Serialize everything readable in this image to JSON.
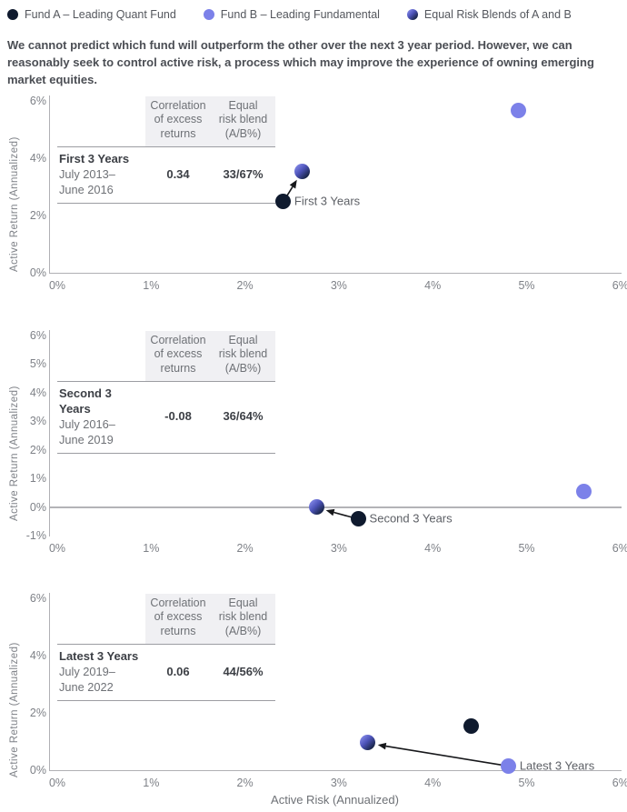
{
  "legend": {
    "items": [
      {
        "fund": "fund_a",
        "label": "Fund A – Leading Quant Fund"
      },
      {
        "fund": "fund_b",
        "label": "Fund B – Leading Fundamental"
      },
      {
        "fund": "blend",
        "label": "Equal Risk Blends of A and B"
      }
    ]
  },
  "intro": "We cannot predict which fund will outperform the other over the next 3 year period. However, we can\nreasonably seek to control active risk, a process which may improve the experience of owning emerging\nmarket equities.",
  "palette": {
    "fund_a": "#0f1a2e",
    "fund_b": "#7c81e9",
    "blend": [
      "#858ae9",
      "#4d53b8",
      "#13203a"
    ],
    "axis": "#b0b0b4",
    "arrow": "#17181b",
    "table_header_bg": "#f0f0f3"
  },
  "chart_data": [
    {
      "type": "scatter",
      "period": "First 3 Years",
      "ylabel": "Active Return (Annualized)",
      "xlabel": "",
      "xlim": [
        0,
        6
      ],
      "ylim": [
        0,
        6.2
      ],
      "x_ticks": [
        {
          "value": 0,
          "label": "0%"
        },
        {
          "value": 1,
          "label": "1%"
        },
        {
          "value": 2,
          "label": "2%"
        },
        {
          "value": 3,
          "label": "3%"
        },
        {
          "value": 4,
          "label": "4%"
        },
        {
          "value": 5,
          "label": "5%"
        },
        {
          "value": 6,
          "label": "6%"
        }
      ],
      "y_ticks": [
        {
          "value": 6,
          "label": "6%"
        },
        {
          "value": 4,
          "label": "4%"
        },
        {
          "value": 2,
          "label": "2%"
        },
        {
          "value": 0,
          "label": "0%"
        }
      ],
      "zero_line": false,
      "points": [
        {
          "fund": "fund_a",
          "name": "Fund A – Leading Quant Fund",
          "x": 2.4,
          "y": 2.5
        },
        {
          "fund": "fund_b",
          "name": "Fund B – Leading Fundamental",
          "x": 4.9,
          "y": 5.65
        },
        {
          "fund": "blend",
          "name": "Equal Risk Blends of A and B",
          "x": 2.6,
          "y": 3.55
        }
      ],
      "arrow": {
        "from": 0,
        "to": 2
      },
      "annotation": {
        "text": "First 3 Years",
        "point": 0
      },
      "table": {
        "col1_header": "Correlation\nof excess\nreturns",
        "col2_header": "Equal\nrisk blend\n(A/B%)",
        "period_label": "First 3 Years",
        "period_range": "July 2013–\nJune 2016",
        "correlation": "0.34",
        "blend": "33/67%"
      }
    },
    {
      "type": "scatter",
      "period": "Second 3 Years",
      "ylabel": "Active Return (Annualized)",
      "xlabel": "",
      "xlim": [
        0,
        6
      ],
      "ylim": [
        -1,
        6.2
      ],
      "x_ticks": [
        {
          "value": 0,
          "label": "0%"
        },
        {
          "value": 1,
          "label": "1%"
        },
        {
          "value": 2,
          "label": "2%"
        },
        {
          "value": 3,
          "label": "3%"
        },
        {
          "value": 4,
          "label": "4%"
        },
        {
          "value": 5,
          "label": "5%"
        },
        {
          "value": 6,
          "label": "6%"
        }
      ],
      "y_ticks": [
        {
          "value": 6,
          "label": "6%"
        },
        {
          "value": 5,
          "label": "5%"
        },
        {
          "value": 4,
          "label": "4%"
        },
        {
          "value": 3,
          "label": "3%"
        },
        {
          "value": 2,
          "label": "2%"
        },
        {
          "value": 1,
          "label": "1%"
        },
        {
          "value": 0,
          "label": "0%"
        },
        {
          "value": -1,
          "label": "-1%"
        }
      ],
      "zero_line": true,
      "points": [
        {
          "fund": "fund_a",
          "name": "Fund A – Leading Quant Fund",
          "x": 3.2,
          "y": -0.4
        },
        {
          "fund": "fund_b",
          "name": "Fund B – Leading Fundamental",
          "x": 5.6,
          "y": 0.55
        },
        {
          "fund": "blend",
          "name": "Equal Risk Blends of A and B",
          "x": 2.75,
          "y": 0.0
        }
      ],
      "arrow": {
        "from": 0,
        "to": 2
      },
      "annotation": {
        "text": "Second 3 Years",
        "point": 0
      },
      "table": {
        "col1_header": "Correlation\nof excess\nreturns",
        "col2_header": "Equal\nrisk blend\n(A/B%)",
        "period_label": "Second 3 Years",
        "period_range": "July 2016–\nJune 2019",
        "correlation": "-0.08",
        "blend": "36/64%"
      }
    },
    {
      "type": "scatter",
      "period": "Latest 3 Years",
      "ylabel": "Active Return (Annualized)",
      "xlabel": "Active Risk (Annualized)",
      "xlim": [
        0,
        6
      ],
      "ylim": [
        0,
        6.2
      ],
      "x_ticks": [
        {
          "value": 0,
          "label": "0%"
        },
        {
          "value": 1,
          "label": "1%"
        },
        {
          "value": 2,
          "label": "2%"
        },
        {
          "value": 3,
          "label": "3%"
        },
        {
          "value": 4,
          "label": "4%"
        },
        {
          "value": 5,
          "label": "5%"
        },
        {
          "value": 6,
          "label": "6%"
        }
      ],
      "y_ticks": [
        {
          "value": 6,
          "label": "6%"
        },
        {
          "value": 4,
          "label": "4%"
        },
        {
          "value": 2,
          "label": "2%"
        },
        {
          "value": 0,
          "label": "0%"
        }
      ],
      "zero_line": false,
      "points": [
        {
          "fund": "fund_a",
          "name": "Fund A – Leading Quant Fund",
          "x": 4.4,
          "y": 1.55
        },
        {
          "fund": "fund_b",
          "name": "Fund B – Leading Fundamental",
          "x": 4.8,
          "y": 0.15
        },
        {
          "fund": "blend",
          "name": "Equal Risk Blends of A and B",
          "x": 3.3,
          "y": 0.95
        }
      ],
      "arrow": {
        "from": 1,
        "to": 2
      },
      "annotation": {
        "text": "Latest 3 Years",
        "point": 1
      },
      "table": {
        "col1_header": "Correlation\nof excess\nreturns",
        "col2_header": "Equal\nrisk blend\n(A/B%)",
        "period_label": "Latest 3 Years",
        "period_range": "July 2019–\nJune 2022",
        "correlation": "0.06",
        "blend": "44/56%"
      }
    }
  ]
}
